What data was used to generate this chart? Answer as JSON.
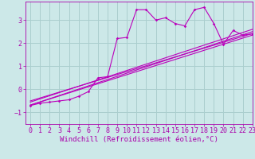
{
  "xlabel": "Windchill (Refroidissement éolien,°C)",
  "xlim": [
    -0.5,
    23
  ],
  "ylim": [
    -1.5,
    3.8
  ],
  "yticks": [
    -1,
    0,
    1,
    2,
    3
  ],
  "xticks": [
    0,
    1,
    2,
    3,
    4,
    5,
    6,
    7,
    8,
    9,
    10,
    11,
    12,
    13,
    14,
    15,
    16,
    17,
    18,
    19,
    20,
    21,
    22,
    23
  ],
  "bg_color": "#cce8e8",
  "grid_color": "#aacece",
  "line_color": "#bb00bb",
  "main_line": [
    [
      0,
      -0.7
    ],
    [
      1,
      -0.6
    ],
    [
      2,
      -0.55
    ],
    [
      3,
      -0.5
    ],
    [
      4,
      -0.45
    ],
    [
      5,
      -0.3
    ],
    [
      6,
      -0.1
    ],
    [
      7,
      0.5
    ],
    [
      8,
      0.55
    ],
    [
      9,
      2.2
    ],
    [
      10,
      2.25
    ],
    [
      11,
      3.45
    ],
    [
      12,
      3.45
    ],
    [
      13,
      3.0
    ],
    [
      14,
      3.1
    ],
    [
      15,
      2.85
    ],
    [
      16,
      2.75
    ],
    [
      17,
      3.45
    ],
    [
      18,
      3.55
    ],
    [
      19,
      2.85
    ],
    [
      20,
      1.95
    ],
    [
      21,
      2.55
    ],
    [
      22,
      2.35
    ],
    [
      23,
      2.4
    ]
  ],
  "straight_lines": [
    [
      [
        0,
        -0.68
      ],
      [
        23,
        2.5
      ]
    ],
    [
      [
        0,
        -0.68
      ],
      [
        23,
        2.35
      ]
    ],
    [
      [
        0,
        -0.55
      ],
      [
        23,
        2.6
      ]
    ],
    [
      [
        0,
        -0.5
      ],
      [
        23,
        2.42
      ]
    ]
  ],
  "figure_bg": "#cce8e8",
  "font_color": "#aa00aa",
  "font_size": 6.5,
  "tick_font_size": 6.0
}
